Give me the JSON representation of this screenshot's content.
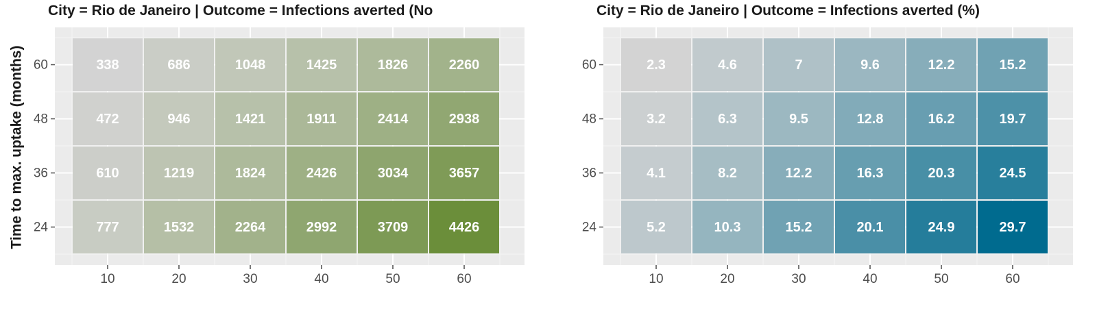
{
  "ylabel": "Time to max. uptake (months)",
  "chart_data": [
    {
      "type": "heatmap",
      "title": "City = Rio de Janeiro | Outcome = Infections averted (No",
      "x": [
        "10",
        "20",
        "30",
        "40",
        "50",
        "60"
      ],
      "y": [
        "60",
        "48",
        "36",
        "24"
      ],
      "values": [
        [
          338,
          686,
          1048,
          1425,
          1826,
          2260
        ],
        [
          472,
          946,
          1421,
          1911,
          2414,
          2938
        ],
        [
          610,
          1219,
          1824,
          2426,
          3034,
          3657
        ],
        [
          777,
          1532,
          2264,
          2992,
          3709,
          4426
        ]
      ],
      "color_low": "#d3d3d3",
      "color_high": "#6b8e3a",
      "grid": true
    },
    {
      "type": "heatmap",
      "title": "City = Rio de Janeiro | Outcome = Infections averted (%)",
      "x": [
        "10",
        "20",
        "30",
        "40",
        "50",
        "60"
      ],
      "y": [
        "60",
        "48",
        "36",
        "24"
      ],
      "values": [
        [
          2.3,
          4.6,
          7,
          9.6,
          12.2,
          15.2
        ],
        [
          3.2,
          6.3,
          9.5,
          12.8,
          16.2,
          19.7
        ],
        [
          4.1,
          8.2,
          12.2,
          16.3,
          20.3,
          24.5
        ],
        [
          5.2,
          10.3,
          15.2,
          20.1,
          24.9,
          29.7
        ]
      ],
      "color_low": "#d3d3d3",
      "color_high": "#006b8f",
      "grid": true
    }
  ]
}
